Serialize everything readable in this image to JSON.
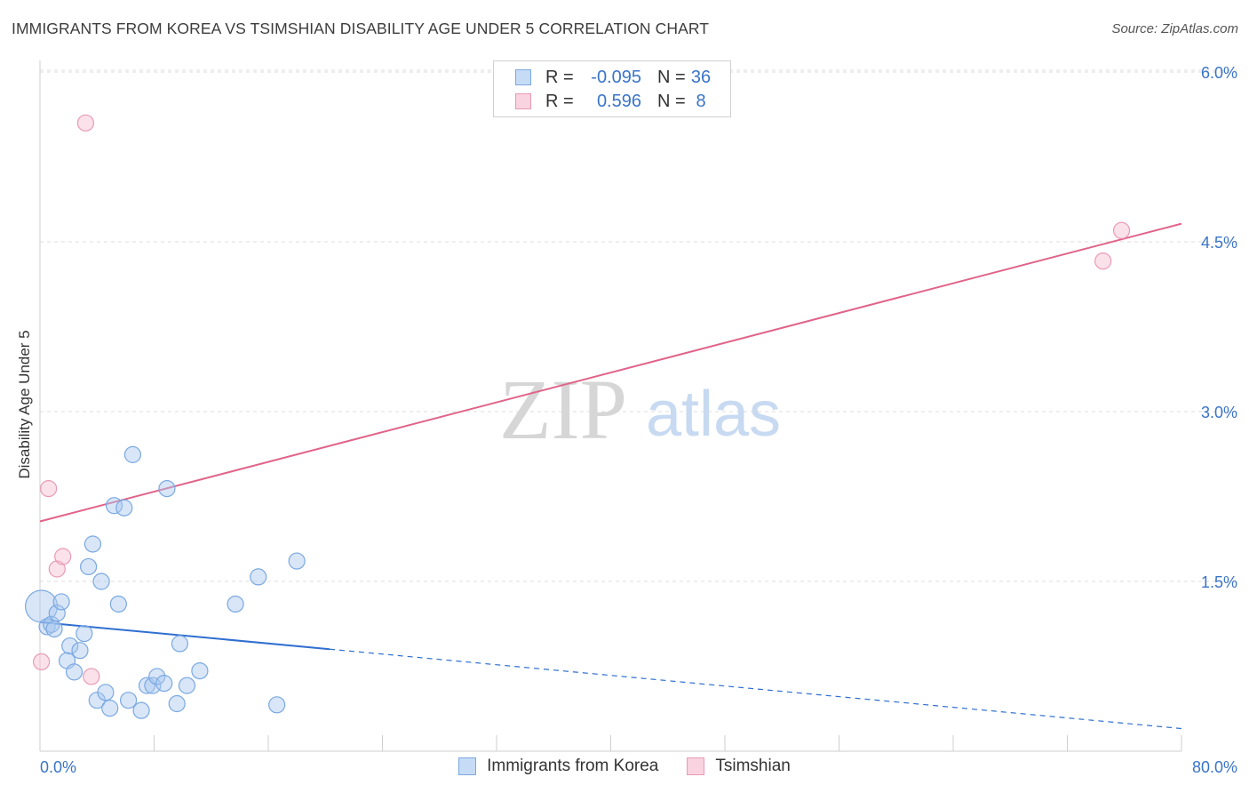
{
  "header": {
    "title": "IMMIGRANTS FROM KOREA VS TSIMSHIAN DISABILITY AGE UNDER 5 CORRELATION CHART",
    "source": "Source: ZipAtlas.com"
  },
  "watermark": {
    "zip": "ZIP",
    "atlas": "atlas"
  },
  "colors": {
    "korea_fill": "#a9c8ef",
    "korea_stroke": "#7aa8e0",
    "korea_line": "#2f6fd0",
    "tsimshian_fill": "#f6bfd0",
    "tsimshian_stroke": "#e99ab4",
    "tsimshian_line": "#e0648a",
    "tick_label": "#3a74c8",
    "grid": "#dddddd"
  },
  "legend": {
    "rows": [
      {
        "r_label": "R =",
        "r_value": "-0.095",
        "n_label": "N =",
        "n_value": "36"
      },
      {
        "r_label": "R =",
        "r_value": "0.596",
        "n_label": "N =",
        "n_value": "8"
      }
    ]
  },
  "bottom_legend": {
    "korea": "Immigrants from Korea",
    "tsimshian": "Tsimshian"
  },
  "chart_data": {
    "type": "scatter",
    "title": "IMMIGRANTS FROM KOREA VS TSIMSHIAN DISABILITY AGE UNDER 5 CORRELATION CHART",
    "xlabel": "",
    "ylabel": "Disability Age Under 5",
    "xlim": [
      0,
      80
    ],
    "ylim": [
      0,
      6.3
    ],
    "x_tick_labels": [
      "0.0%",
      "80.0%"
    ],
    "y_ticks": [
      1.5,
      3.0,
      4.5,
      6.0
    ],
    "y_tick_labels": [
      "1.5%",
      "3.0%",
      "4.5%",
      "6.0%"
    ],
    "grid": true,
    "series": [
      {
        "name": "Immigrants from Korea",
        "points": [
          {
            "x": 0.1,
            "y": 1.28,
            "big": true
          },
          {
            "x": 0.5,
            "y": 1.1
          },
          {
            "x": 0.8,
            "y": 1.12
          },
          {
            "x": 1.0,
            "y": 1.08
          },
          {
            "x": 1.2,
            "y": 1.22
          },
          {
            "x": 1.5,
            "y": 1.32
          },
          {
            "x": 1.9,
            "y": 0.8
          },
          {
            "x": 2.1,
            "y": 0.93
          },
          {
            "x": 2.4,
            "y": 0.7
          },
          {
            "x": 2.8,
            "y": 0.89
          },
          {
            "x": 3.1,
            "y": 1.04
          },
          {
            "x": 3.4,
            "y": 1.63
          },
          {
            "x": 3.7,
            "y": 1.83
          },
          {
            "x": 4.0,
            "y": 0.45
          },
          {
            "x": 4.3,
            "y": 1.5
          },
          {
            "x": 4.6,
            "y": 0.52
          },
          {
            "x": 4.9,
            "y": 0.38
          },
          {
            "x": 5.2,
            "y": 2.17
          },
          {
            "x": 5.5,
            "y": 1.3
          },
          {
            "x": 5.9,
            "y": 2.15
          },
          {
            "x": 6.2,
            "y": 0.45
          },
          {
            "x": 6.5,
            "y": 2.62
          },
          {
            "x": 7.1,
            "y": 0.36
          },
          {
            "x": 7.5,
            "y": 0.58
          },
          {
            "x": 7.9,
            "y": 0.58
          },
          {
            "x": 8.2,
            "y": 0.66
          },
          {
            "x": 8.7,
            "y": 0.6
          },
          {
            "x": 8.9,
            "y": 2.32
          },
          {
            "x": 9.6,
            "y": 0.42
          },
          {
            "x": 9.8,
            "y": 0.95
          },
          {
            "x": 10.3,
            "y": 0.58
          },
          {
            "x": 11.2,
            "y": 0.71
          },
          {
            "x": 13.7,
            "y": 1.3
          },
          {
            "x": 15.3,
            "y": 1.54
          },
          {
            "x": 16.6,
            "y": 0.41
          },
          {
            "x": 18.0,
            "y": 1.68
          }
        ],
        "trend": {
          "x0": 0,
          "y0": 1.14,
          "x_solid_end": 20.3,
          "x1": 80,
          "y1": 0.2
        }
      },
      {
        "name": "Tsimshian",
        "points": [
          {
            "x": 0.1,
            "y": 0.79
          },
          {
            "x": 0.6,
            "y": 2.32
          },
          {
            "x": 1.2,
            "y": 1.61
          },
          {
            "x": 1.6,
            "y": 1.72
          },
          {
            "x": 3.2,
            "y": 5.55
          },
          {
            "x": 3.6,
            "y": 0.66
          },
          {
            "x": 74.5,
            "y": 4.33
          },
          {
            "x": 75.8,
            "y": 4.6
          }
        ],
        "trend": {
          "x0": 0,
          "y0": 2.03,
          "x1": 80,
          "y1": 4.66
        }
      }
    ]
  }
}
